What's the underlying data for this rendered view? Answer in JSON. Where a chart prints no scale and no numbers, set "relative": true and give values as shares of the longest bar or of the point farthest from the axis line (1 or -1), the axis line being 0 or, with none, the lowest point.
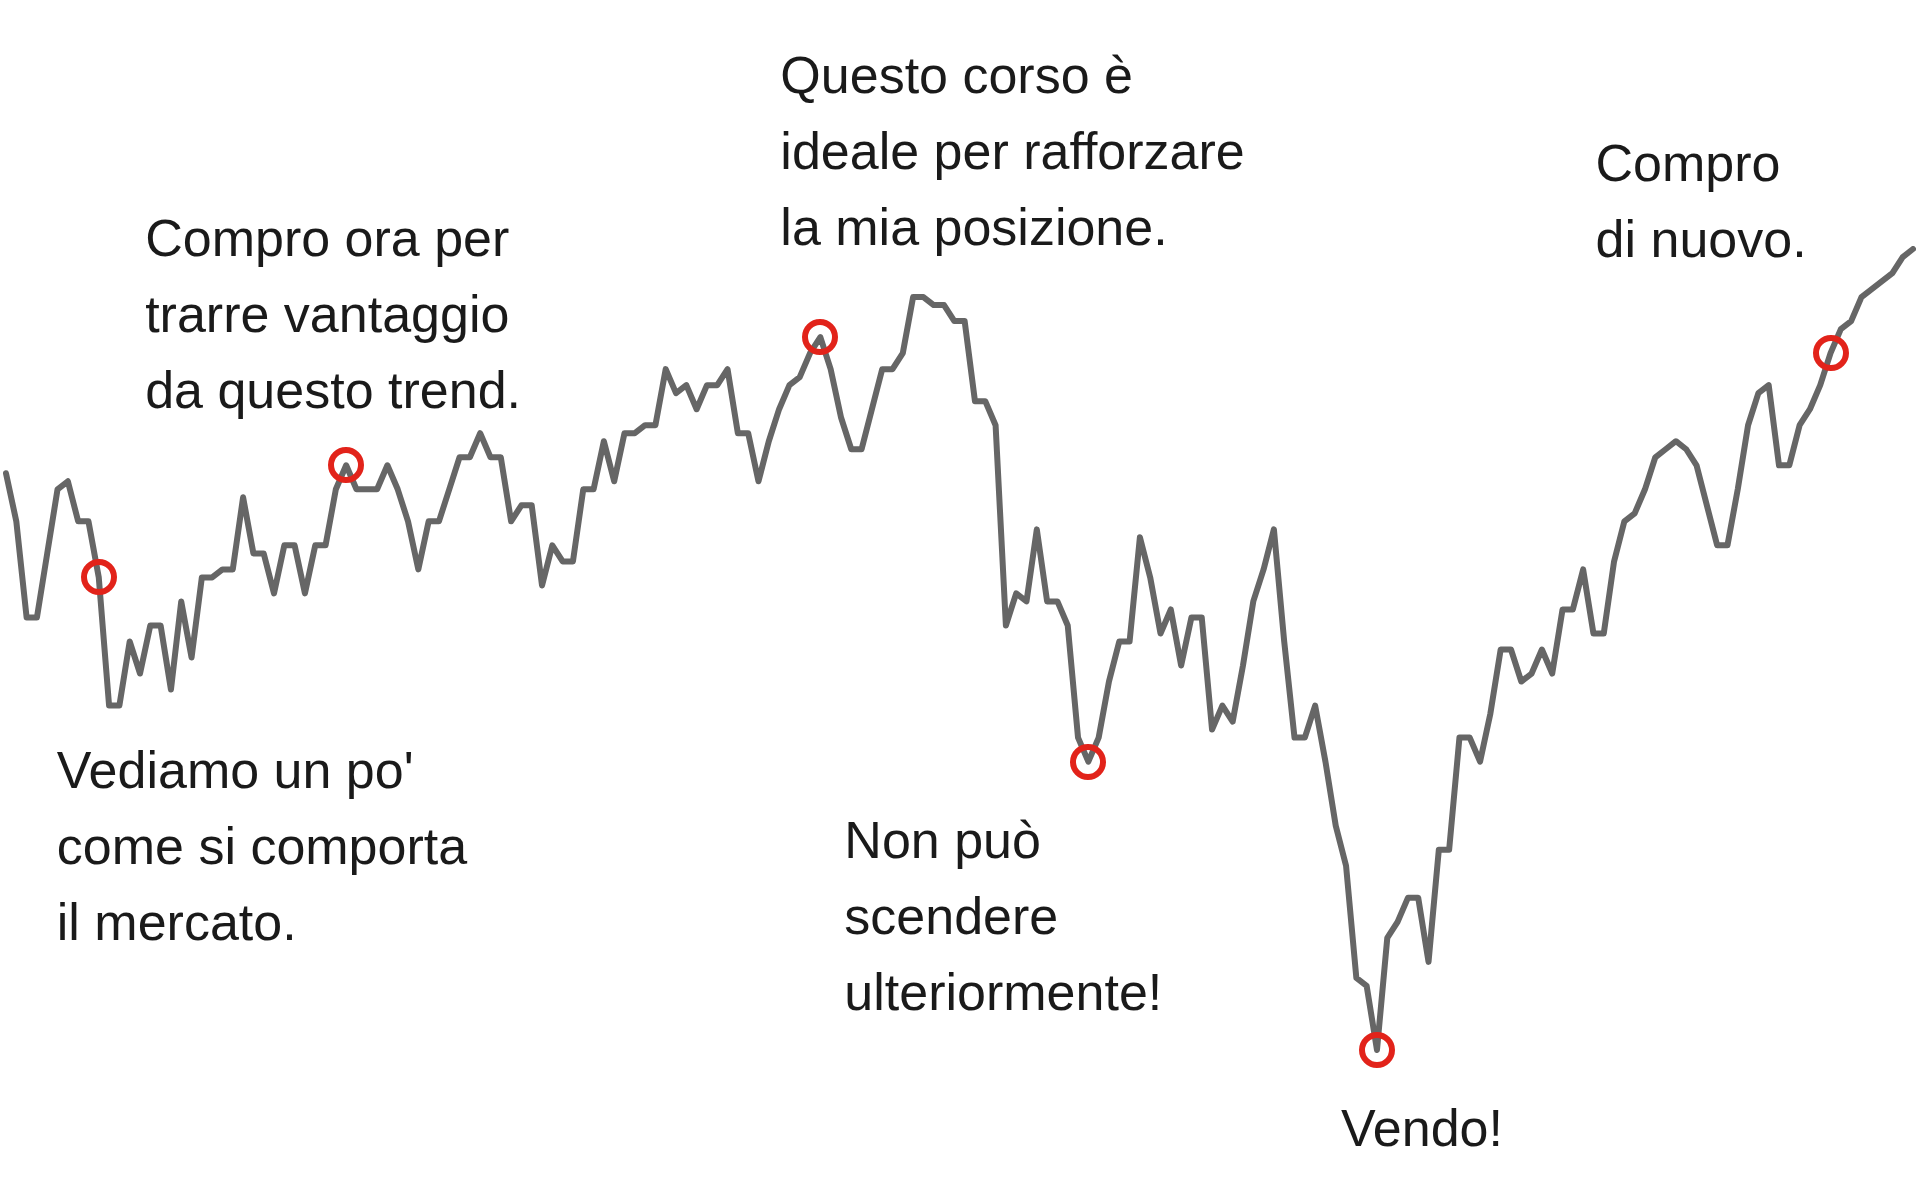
{
  "chart_data": {
    "type": "line",
    "relative": true,
    "categories": [
      null,
      null,
      null,
      null,
      null,
      null,
      null,
      null,
      null,
      null,
      null,
      null,
      null,
      null,
      null,
      null,
      null,
      null,
      null,
      null,
      null,
      null,
      null,
      null,
      null,
      null,
      null,
      null,
      null,
      null,
      null,
      null,
      null,
      null,
      null,
      null,
      null,
      null,
      null,
      null,
      null,
      null,
      null,
      null,
      null,
      null,
      null,
      null,
      null,
      null,
      null,
      null,
      null,
      null,
      null,
      null,
      null,
      null,
      null,
      null,
      null,
      null,
      null,
      null,
      null,
      null,
      null,
      null,
      null,
      null,
      null,
      null,
      null,
      null,
      null,
      null,
      null,
      null,
      null,
      null,
      null,
      null,
      null,
      null,
      null,
      null,
      null,
      null,
      null,
      null,
      null,
      null,
      null,
      null,
      null,
      null,
      null,
      null,
      null,
      null,
      null,
      null,
      null,
      null,
      null,
      null,
      null,
      null,
      null,
      null,
      null,
      null,
      null,
      null,
      null,
      null,
      null,
      null,
      null,
      null,
      null,
      null,
      null,
      null,
      null,
      null,
      null,
      null,
      null,
      null,
      null,
      null,
      null,
      null,
      null,
      null,
      null,
      null,
      null,
      null,
      null,
      null,
      null,
      null,
      null,
      null,
      null,
      null,
      null,
      null,
      null,
      null,
      null,
      null,
      null,
      null,
      null,
      null,
      null,
      null,
      null,
      null,
      null,
      null,
      null,
      null,
      null,
      null,
      null,
      null,
      null,
      null,
      null,
      null,
      null,
      null,
      null,
      null,
      null,
      null,
      null,
      null,
      null,
      null,
      null,
      null
    ],
    "series": [
      {
        "color": "#666666",
        "values": [
          0.72,
          0.66,
          0.54,
          0.54,
          0.62,
          0.7,
          0.71,
          0.66,
          0.66,
          0.59,
          0.43,
          0.43,
          0.51,
          0.47,
          0.53,
          0.53,
          0.45,
          0.56,
          0.49,
          0.59,
          0.59,
          0.6,
          0.6,
          0.69,
          0.62,
          0.62,
          0.57,
          0.63,
          0.63,
          0.57,
          0.63,
          0.63,
          0.7,
          0.73,
          0.7,
          0.7,
          0.7,
          0.73,
          0.7,
          0.66,
          0.6,
          0.66,
          0.66,
          0.7,
          0.74,
          0.74,
          0.77,
          0.74,
          0.74,
          0.66,
          0.68,
          0.68,
          0.58,
          0.63,
          0.61,
          0.61,
          0.7,
          0.7,
          0.76,
          0.71,
          0.77,
          0.77,
          0.78,
          0.78,
          0.85,
          0.82,
          0.83,
          0.8,
          0.83,
          0.83,
          0.85,
          0.77,
          0.77,
          0.71,
          0.76,
          0.8,
          0.83,
          0.84,
          0.87,
          0.89,
          0.85,
          0.79,
          0.75,
          0.75,
          0.8,
          0.85,
          0.85,
          0.87,
          0.94,
          0.94,
          0.93,
          0.93,
          0.91,
          0.91,
          0.81,
          0.81,
          0.78,
          0.53,
          0.57,
          0.56,
          0.65,
          0.56,
          0.56,
          0.53,
          0.39,
          0.36,
          0.39,
          0.46,
          0.51,
          0.51,
          0.64,
          0.59,
          0.52,
          0.55,
          0.48,
          0.54,
          0.54,
          0.4,
          0.43,
          0.41,
          0.48,
          0.56,
          0.6,
          0.65,
          0.51,
          0.39,
          0.39,
          0.43,
          0.36,
          0.28,
          0.23,
          0.09,
          0.08,
          0,
          0.14,
          0.16,
          0.19,
          0.19,
          0.11,
          0.25,
          0.25,
          0.39,
          0.39,
          0.36,
          0.42,
          0.5,
          0.5,
          0.46,
          0.47,
          0.5,
          0.47,
          0.55,
          0.55,
          0.6,
          0.52,
          0.52,
          0.61,
          0.66,
          0.67,
          0.7,
          0.74,
          0.75,
          0.76,
          0.75,
          0.73,
          0.68,
          0.63,
          0.63,
          0.7,
          0.78,
          0.82,
          0.83,
          0.73,
          0.73,
          0.78,
          0.8,
          0.83,
          0.87,
          0.9,
          0.91,
          0.94,
          0.95,
          0.96,
          0.97,
          0.99,
          1.0
        ]
      }
    ],
    "annotations": [
      "Vediamo un po'\ncome si comporta\nil mercato.",
      "Compro ora per\ntrarre vantaggio\nda questo trend.",
      "Questo corso è\nideale per rafforzare\nla mia posizione.",
      "Non può\nscendere\nulteriormente!",
      "Vendo!",
      "Compro\ndi nuovo."
    ]
  }
}
